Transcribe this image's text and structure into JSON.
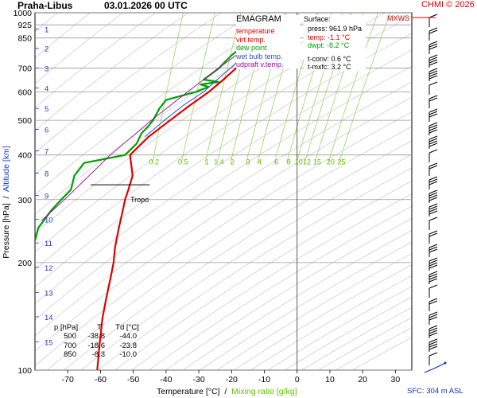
{
  "header": {
    "station": "Praha-Libus",
    "datetime": "03.01.2026 00 UTC",
    "credit": "CHMI © 2026"
  },
  "legend": {
    "title": "EMAGRAM",
    "items": [
      {
        "label": "temperature",
        "color": "#e00000"
      },
      {
        "label": "virt.temp.",
        "color": "#e00000"
      },
      {
        "label": "dew point",
        "color": "#00a000"
      },
      {
        "label": "wet bulb temp.",
        "color": "#3050d0"
      },
      {
        "label": "udpraft v.temp.",
        "color": "#a000a0"
      }
    ]
  },
  "surface": {
    "title": "Surface:",
    "press": "press: 961.9 hPa",
    "temp": "temp: -1.1 °C",
    "dwpt": "dwpt: -8.2 °C",
    "tconv": "t-conv: 0.6 °C",
    "tmxfc": "t-mxfc: 3.2 °C"
  },
  "wind_label": "MXWS",
  "tropo_label": "Tropo",
  "mixing_labels": [
    "0.2",
    "0.5",
    "1",
    "1.4",
    "2",
    "3",
    "4",
    "6",
    "8",
    "10",
    "12",
    "15",
    "20",
    "25"
  ],
  "table": {
    "headers": [
      "p [hPa]",
      "T",
      "Td [°C]"
    ],
    "rows": [
      [
        "500",
        "-38.8",
        "-44.0"
      ],
      [
        "700",
        "-18.6",
        "-23.8"
      ],
      [
        "850",
        "-8.3",
        "-10.0"
      ]
    ]
  },
  "axes": {
    "ylabel_pressure": "Pressure [hPa]",
    "ylabel_sep": "/",
    "ylabel_altitude": "Altitude [km]",
    "xlabel_temp": "Temperature [°C]",
    "xlabel_sep": "/",
    "xlabel_mix": "Mixing ratio [g/kg]",
    "sfc": "SFC: 304 m ASL"
  },
  "chart_data": {
    "type": "line",
    "title": "EMAGRAM",
    "xlabel": "Temperature [°C]",
    "ylabel": "Pressure [hPa]",
    "y_scale": "log",
    "xlim": [
      -80,
      35
    ],
    "ylim": [
      1000,
      100
    ],
    "x_ticks": [
      -70,
      -60,
      -50,
      -40,
      -30,
      -20,
      -10,
      0,
      10,
      20,
      30
    ],
    "pressure_ticks": [
      100,
      200,
      300,
      400,
      500,
      600,
      700,
      850,
      925,
      1000
    ],
    "altitude_ticks_km": [
      1,
      2,
      3,
      4,
      5,
      6,
      7,
      8,
      9,
      10,
      11,
      12,
      13,
      14,
      15
    ],
    "altitude_pressure": [
      900,
      795,
      700,
      616,
      540,
      472,
      411,
      356,
      308,
      264,
      227,
      194,
      165,
      141,
      120
    ],
    "series": [
      {
        "name": "temperature",
        "color": "#e00000",
        "points": [
          [
            961.9,
            -1.1
          ],
          [
            925,
            -4.6
          ],
          [
            900,
            -6.2
          ],
          [
            850,
            -8.3
          ],
          [
            800,
            -11.5
          ],
          [
            750,
            -15.2
          ],
          [
            700,
            -18.6
          ],
          [
            650,
            -22.5
          ],
          [
            600,
            -27.0
          ],
          [
            550,
            -32.8
          ],
          [
            500,
            -38.8
          ],
          [
            450,
            -45.3
          ],
          [
            400,
            -51.0
          ],
          [
            380,
            -50.7
          ],
          [
            350,
            -50.2
          ],
          [
            320,
            -51.5
          ],
          [
            300,
            -52.5
          ],
          [
            280,
            -53.2
          ],
          [
            250,
            -54.4
          ],
          [
            220,
            -55.6
          ],
          [
            200,
            -56.0
          ],
          [
            180,
            -57.0
          ],
          [
            160,
            -58.2
          ],
          [
            140,
            -59.4
          ],
          [
            120,
            -60.2
          ],
          [
            100,
            -61.0
          ]
        ]
      },
      {
        "name": "dew point",
        "color": "#00a000",
        "points": [
          [
            961.9,
            -8.2
          ],
          [
            925,
            -9.2
          ],
          [
            900,
            -9.8
          ],
          [
            850,
            -10.0
          ],
          [
            820,
            -13.0
          ],
          [
            800,
            -17.0
          ],
          [
            760,
            -20.0
          ],
          [
            720,
            -22.6
          ],
          [
            700,
            -23.8
          ],
          [
            650,
            -28.5
          ],
          [
            640,
            -24.0
          ],
          [
            630,
            -29.5
          ],
          [
            620,
            -27.0
          ],
          [
            600,
            -31.0
          ],
          [
            570,
            -40.0
          ],
          [
            540,
            -42.0
          ],
          [
            500,
            -44.0
          ],
          [
            480,
            -45.5
          ],
          [
            460,
            -47.5
          ],
          [
            430,
            -49.0
          ],
          [
            400,
            -52.5
          ],
          [
            380,
            -65.0
          ],
          [
            350,
            -68.0
          ],
          [
            320,
            -69.0
          ],
          [
            300,
            -72.0
          ],
          [
            280,
            -75.0
          ],
          [
            250,
            -79.0
          ],
          [
            230,
            -80.0
          ]
        ]
      },
      {
        "name": "wet bulb temp.",
        "color": "#3050d0",
        "points": [
          [
            961.9,
            -3.6
          ],
          [
            925,
            -6.3
          ],
          [
            850,
            -9.0
          ],
          [
            750,
            -17.0
          ],
          [
            700,
            -20.3
          ],
          [
            650,
            -24.4
          ],
          [
            600,
            -28.6
          ],
          [
            550,
            -34.8
          ],
          [
            500,
            -40.5
          ],
          [
            450,
            -46.5
          ]
        ]
      },
      {
        "name": "udpraft v.temp.",
        "color": "#a000a0",
        "points": [
          [
            961.9,
            -1.2
          ],
          [
            925,
            -4.6
          ],
          [
            850,
            -11.0
          ],
          [
            750,
            -19.5
          ],
          [
            700,
            -24.0
          ],
          [
            600,
            -33.5
          ],
          [
            500,
            -44.5
          ],
          [
            400,
            -57.0
          ],
          [
            300,
            -71.0
          ],
          [
            262,
            -78.0
          ]
        ]
      }
    ],
    "tropopause_hpa": 330
  }
}
